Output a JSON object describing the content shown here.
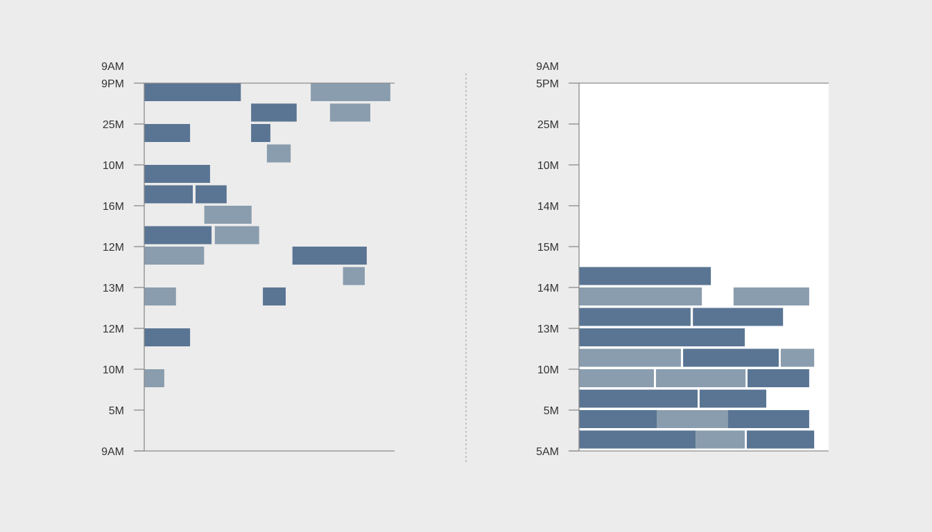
{
  "colors": {
    "background": "#ececec",
    "plot_right_bg": "#ffffff",
    "axis": "#8a8a8a",
    "tick_text": "#333333",
    "bar_dark": "#5a7593",
    "bar_light": "#8a9dae",
    "divider": "#9a9a9a"
  },
  "chart_data": [
    {
      "type": "bar",
      "orientation": "horizontal",
      "layout": "free-floating blocks",
      "top_label": "9AM",
      "y_tick_labels": [
        "9PM",
        "25M",
        "10M",
        "16M",
        "12M",
        "13M",
        "12M",
        "10M",
        "5M",
        "9AM"
      ],
      "grid": false,
      "legend": null,
      "x_range": [
        0,
        100
      ],
      "blocks": [
        {
          "row": 0,
          "start": 0,
          "end": 38.6,
          "shade": "dark"
        },
        {
          "row": 0,
          "start": 66.5,
          "end": 98.3,
          "shade": "light"
        },
        {
          "row": 0.5,
          "start": 42.7,
          "end": 60.9,
          "shade": "dark"
        },
        {
          "row": 0.5,
          "start": 74.2,
          "end": 90.3,
          "shade": "light"
        },
        {
          "row": 1,
          "start": 0,
          "end": 18.3,
          "shade": "dark"
        },
        {
          "row": 1,
          "start": 42.7,
          "end": 50.4,
          "shade": "dark"
        },
        {
          "row": 1.5,
          "start": 49.0,
          "end": 58.5,
          "shade": "light"
        },
        {
          "row": 2,
          "start": 0,
          "end": 26.3,
          "shade": "dark"
        },
        {
          "row": 2.5,
          "start": 0,
          "end": 19.4,
          "shade": "dark"
        },
        {
          "row": 2.5,
          "start": 20.5,
          "end": 32.9,
          "shade": "dark"
        },
        {
          "row": 3,
          "start": 24.0,
          "end": 42.9,
          "shade": "light"
        },
        {
          "row": 3.5,
          "start": 0,
          "end": 26.9,
          "shade": "dark"
        },
        {
          "row": 3.5,
          "start": 28.2,
          "end": 45.9,
          "shade": "light"
        },
        {
          "row": 4,
          "start": 0,
          "end": 23.9,
          "shade": "light"
        },
        {
          "row": 4,
          "start": 59.2,
          "end": 88.9,
          "shade": "dark"
        },
        {
          "row": 4.5,
          "start": 79.4,
          "end": 88.1,
          "shade": "light"
        },
        {
          "row": 5,
          "start": 0,
          "end": 12.7,
          "shade": "light"
        },
        {
          "row": 5,
          "start": 47.4,
          "end": 56.5,
          "shade": "dark"
        },
        {
          "row": 6,
          "start": 0,
          "end": 18.3,
          "shade": "dark"
        },
        {
          "row": 7,
          "start": 0,
          "end": 8.0,
          "shade": "light"
        }
      ]
    },
    {
      "type": "bar",
      "orientation": "horizontal",
      "layout": "stacked rows",
      "top_label": "9AM",
      "y_tick_labels": [
        "5PM",
        "25M",
        "10M",
        "14M",
        "15M",
        "14M",
        "13M",
        "10M",
        "5M",
        "5AM"
      ],
      "grid": false,
      "legend": null,
      "x_range": [
        0,
        100
      ],
      "blocks": [
        {
          "row": 4.5,
          "start": 0,
          "end": 52.8,
          "shade": "dark"
        },
        {
          "row": 5,
          "start": 0,
          "end": 49.2,
          "shade": "light"
        },
        {
          "row": 5,
          "start": 61.9,
          "end": 92.2,
          "shade": "light"
        },
        {
          "row": 5.5,
          "start": 0,
          "end": 44.7,
          "shade": "dark"
        },
        {
          "row": 5.5,
          "start": 45.6,
          "end": 81.7,
          "shade": "dark"
        },
        {
          "row": 6,
          "start": 0,
          "end": 66.4,
          "shade": "dark"
        },
        {
          "row": 6.5,
          "start": 0,
          "end": 40.8,
          "shade": "light"
        },
        {
          "row": 6.5,
          "start": 41.7,
          "end": 80.0,
          "shade": "dark"
        },
        {
          "row": 6.5,
          "start": 80.8,
          "end": 94.2,
          "shade": "light"
        },
        {
          "row": 7,
          "start": 0,
          "end": 30.0,
          "shade": "light"
        },
        {
          "row": 7,
          "start": 30.8,
          "end": 66.7,
          "shade": "light"
        },
        {
          "row": 7,
          "start": 67.5,
          "end": 92.2,
          "shade": "dark"
        },
        {
          "row": 7.5,
          "start": 0,
          "end": 47.5,
          "shade": "dark"
        },
        {
          "row": 7.5,
          "start": 48.3,
          "end": 75.0,
          "shade": "dark"
        },
        {
          "row": 8,
          "start": 0,
          "end": 31.1,
          "shade": "dark"
        },
        {
          "row": 8,
          "start": 31.1,
          "end": 59.7,
          "shade": "light"
        },
        {
          "row": 8,
          "start": 59.7,
          "end": 92.2,
          "shade": "dark"
        },
        {
          "row": 8.5,
          "start": 0,
          "end": 46.7,
          "shade": "dark"
        },
        {
          "row": 8.5,
          "start": 46.7,
          "end": 66.4,
          "shade": "light"
        },
        {
          "row": 8.5,
          "start": 67.2,
          "end": 94.2,
          "shade": "dark"
        }
      ]
    }
  ]
}
